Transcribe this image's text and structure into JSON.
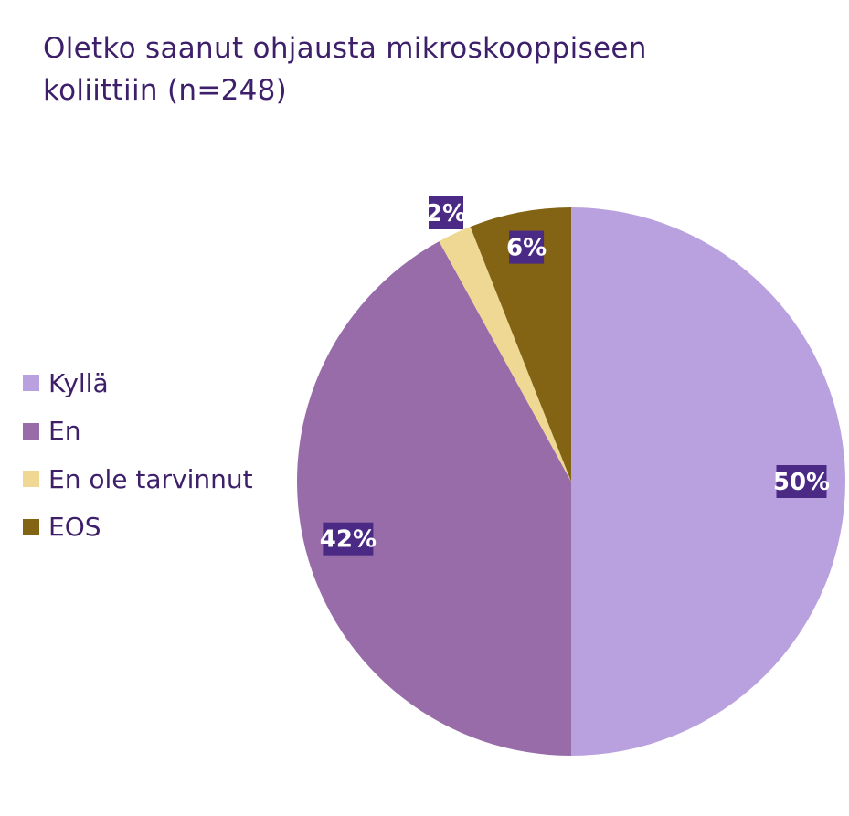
{
  "chart_data": {
    "type": "pie",
    "title": "Oletko saanut ohjausta mikroskooppiseen koliittiin (n=248)",
    "categories": [
      "Kyllä",
      "En",
      "En ole tarvinnut",
      "EOS"
    ],
    "values": [
      50,
      42,
      2,
      6
    ],
    "data_labels": [
      "50%",
      "42%",
      "2%",
      "6%"
    ],
    "colors": [
      "#b9a0de",
      "#976ca9",
      "#efd893",
      "#836414"
    ],
    "label_background": "#4b2a86",
    "legend_position": "left"
  }
}
